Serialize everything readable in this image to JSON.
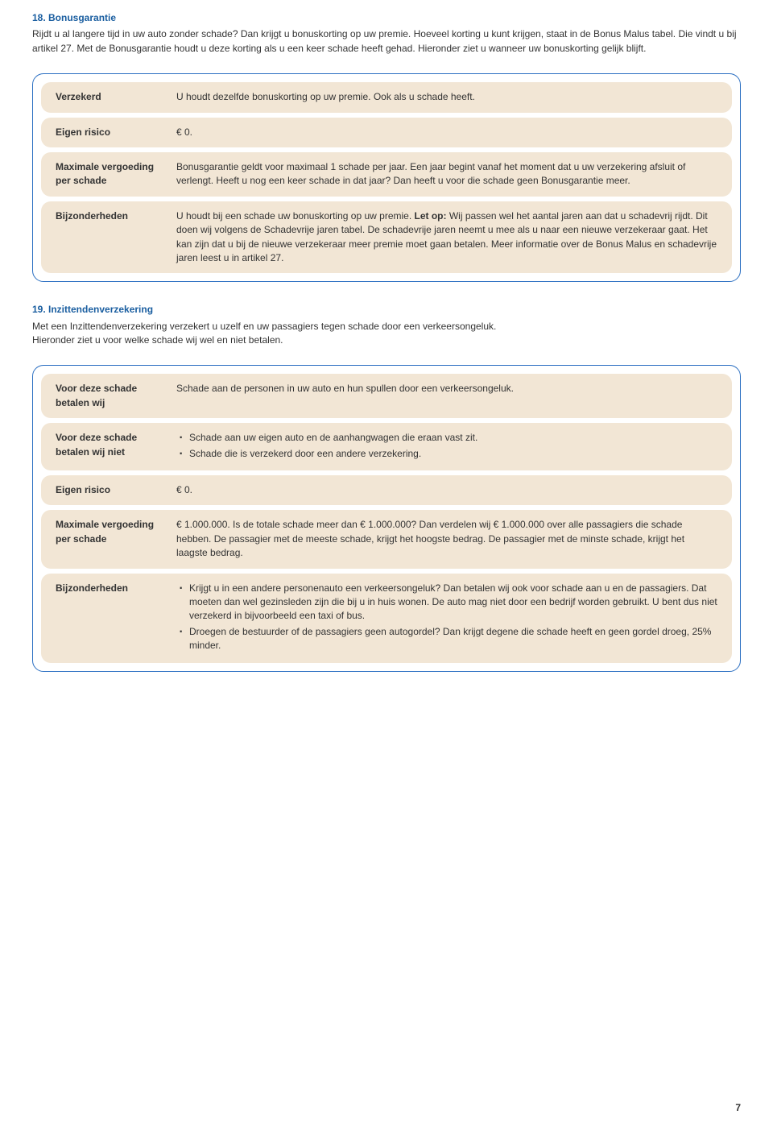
{
  "section18": {
    "title": "18. Bonusgarantie",
    "intro": "Rijdt u al langere tijd in uw auto zonder schade? Dan krijgt u bonuskorting op uw premie. Hoeveel korting u kunt krijgen, staat in de Bonus Malus tabel. Die vindt u bij artikel 27. Met de Bonusgarantie houdt u deze korting als u een keer schade heeft gehad. Hieronder ziet u wanneer uw bonuskorting gelijk blijft.",
    "rows": {
      "verzekerd": {
        "label": "Verzekerd",
        "value": "U houdt dezelfde bonuskorting op uw premie. Ook als u schade heeft."
      },
      "eigenrisico": {
        "label": "Eigen risico",
        "value": "€ 0."
      },
      "maxvergoed": {
        "label": "Maximale vergoeding per schade",
        "value": "Bonusgarantie geldt voor maximaal 1 schade per jaar. Een jaar begint vanaf het moment dat u uw verzekering afsluit of verlengt. Heeft u nog een keer schade in dat jaar? Dan heeft u voor die schade geen Bonusgarantie meer."
      },
      "bijz": {
        "label": "Bijzonderheden",
        "pre": "U houdt bij een schade uw bonuskorting op uw premie. ",
        "bold": "Let op:",
        "post": " Wij passen wel het aantal jaren aan dat u schadevrij rijdt. Dit doen wij volgens de Schadevrije jaren tabel. De schadevrije jaren neemt u mee als u naar een nieuwe verzekeraar gaat. Het kan zijn dat u bij de nieuwe verzekeraar meer premie moet gaan betalen. Meer informatie over de Bonus Malus en schadevrije jaren leest u in artikel 27."
      }
    }
  },
  "section19": {
    "title": "19. Inzittendenverzekering",
    "intro1": "Met een Inzittendenverzekering verzekert u uzelf en uw passagiers tegen schade door een verkeersongeluk.",
    "intro2": "Hieronder ziet u voor welke schade wij wel en niet betalen.",
    "rows": {
      "wel": {
        "label": "Voor deze schade betalen wij",
        "value": "Schade aan de personen in uw auto en hun spullen door een verkeersongeluk."
      },
      "niet": {
        "label": "Voor deze schade betalen wij niet",
        "items": [
          "Schade aan uw eigen auto en de aanhangwagen die eraan vast zit.",
          "Schade die is verzekerd door een andere verzekering."
        ]
      },
      "eigenrisico": {
        "label": "Eigen risico",
        "value": "€ 0."
      },
      "maxvergoed": {
        "label": "Maximale vergoeding per schade",
        "value": "€ 1.000.000. Is de totale schade meer dan € 1.000.000? Dan verdelen wij € 1.000.000 over alle passagiers die schade hebben. De passagier met de meeste schade, krijgt het hoogste bedrag. De passagier met de minste schade, krijgt het laagste bedrag."
      },
      "bijz": {
        "label": "Bijzonderheden",
        "items": [
          "Krijgt u in een andere personenauto een verkeersongeluk? Dan betalen wij ook voor schade aan u en de passagiers. Dat moeten dan wel gezinsleden zijn die bij u in huis wonen. De auto mag niet door een bedrijf worden gebruikt. U bent dus niet verzekerd in bijvoorbeeld een taxi of bus.",
          "Droegen de bestuurder of de passagiers geen autogordel? Dan krijgt degene die schade heeft en geen gordel droeg, 25% minder."
        ]
      }
    }
  },
  "pageNumber": "7"
}
